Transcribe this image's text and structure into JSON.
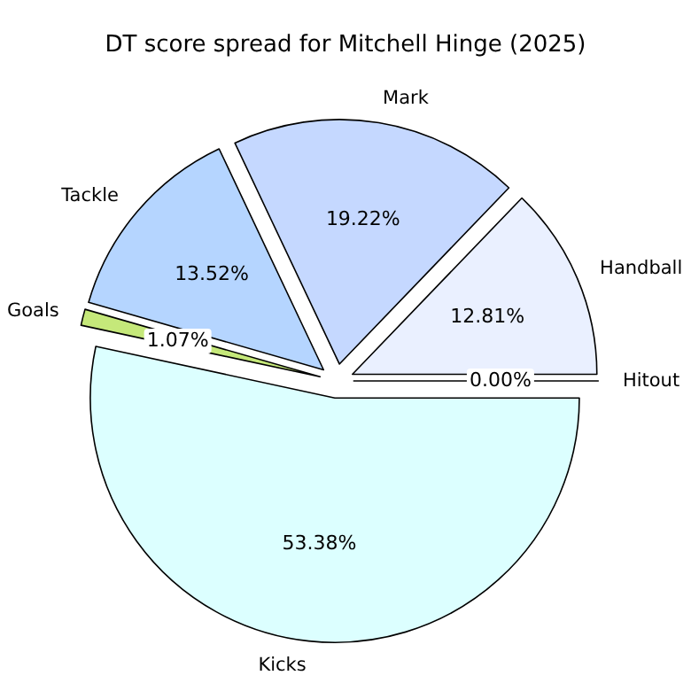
{
  "chart_data": {
    "type": "pie",
    "title": "DT score spread for Mitchell Hinge (2025)",
    "categories": [
      "Hitout",
      "Handball",
      "Mark",
      "Tackle",
      "Goals",
      "Kicks"
    ],
    "values": [
      0.0,
      12.81,
      19.22,
      13.52,
      1.07,
      53.38
    ],
    "colors": [
      "#f0f4ff",
      "#eaf0ff",
      "#c5d8ff",
      "#b5d5ff",
      "#c5e87a",
      "#dcffff"
    ],
    "value_labels": [
      "0.00%",
      "12.81%",
      "19.22%",
      "13.52%",
      "1.07%",
      "53.38%"
    ]
  }
}
